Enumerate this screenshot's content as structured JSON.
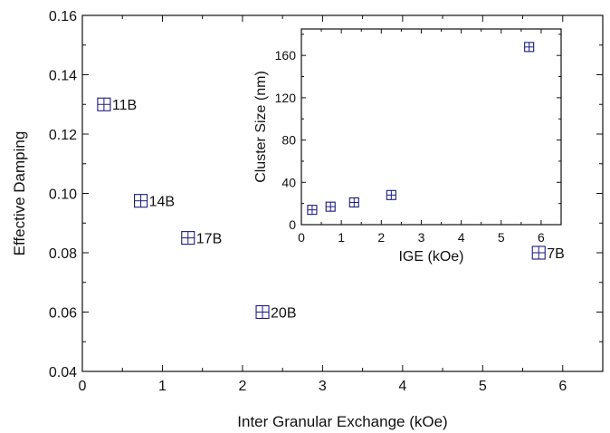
{
  "chart_data": [
    {
      "type": "scatter",
      "xlabel": "Inter Granular Exchange (kOe)",
      "ylabel": "Effective Damping",
      "xlim": [
        0,
        6.5
      ],
      "ylim": [
        0.04,
        0.16
      ],
      "xticks": [
        0,
        1,
        2,
        3,
        4,
        5,
        6
      ],
      "xtick_labels": [
        "0",
        "1",
        "2",
        "3",
        "4",
        "5",
        "6"
      ],
      "yticks": [
        0.04,
        0.06,
        0.08,
        0.1,
        0.12,
        0.14,
        0.16
      ],
      "ytick_labels": [
        "0.04",
        "0.06",
        "0.08",
        "0.10",
        "0.12",
        "0.14",
        "0.16"
      ],
      "grid": false,
      "marker_color": "#1a1a80",
      "points": [
        {
          "x": 0.27,
          "y": 0.13,
          "label": "11B"
        },
        {
          "x": 0.73,
          "y": 0.0975,
          "label": "14B"
        },
        {
          "x": 1.32,
          "y": 0.085,
          "label": "17B"
        },
        {
          "x": 2.25,
          "y": 0.06,
          "label": "20B"
        },
        {
          "x": 5.7,
          "y": 0.08,
          "label": "7B"
        }
      ]
    },
    {
      "type": "scatter",
      "inset": true,
      "xlabel": "IGE (kOe)",
      "ylabel": "Cluster Size (nm)",
      "xlim": [
        0,
        6.5
      ],
      "ylim": [
        0,
        185
      ],
      "xticks": [
        0,
        1,
        2,
        3,
        4,
        5,
        6
      ],
      "xtick_labels": [
        "0",
        "1",
        "2",
        "3",
        "4",
        "5",
        "6"
      ],
      "yticks": [
        0,
        40,
        80,
        120,
        160
      ],
      "ytick_labels": [
        "0",
        "40",
        "80",
        "120",
        "160"
      ],
      "grid": false,
      "marker_color": "#1a1a80",
      "points": [
        {
          "x": 0.27,
          "y": 14
        },
        {
          "x": 0.73,
          "y": 17
        },
        {
          "x": 1.32,
          "y": 21
        },
        {
          "x": 2.25,
          "y": 28
        },
        {
          "x": 5.7,
          "y": 168
        }
      ]
    }
  ]
}
